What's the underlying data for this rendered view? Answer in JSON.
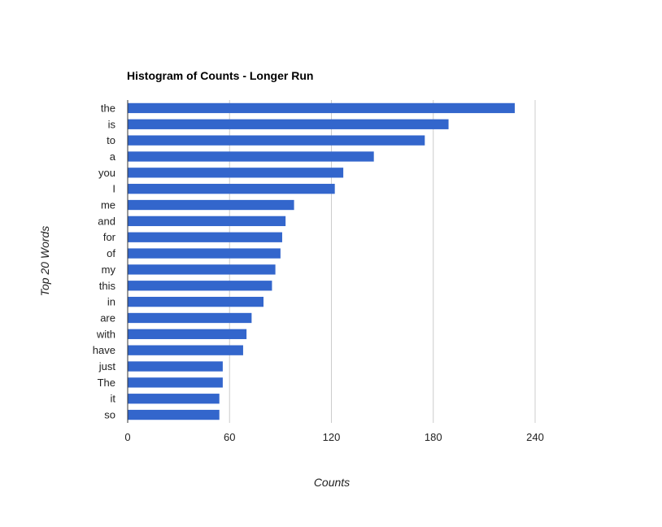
{
  "chart_data": {
    "type": "bar",
    "orientation": "horizontal",
    "title": "Histogram of Counts - Longer Run",
    "xlabel": "Counts",
    "ylabel": "Top 20 Words",
    "xlim": [
      0,
      240
    ],
    "xticks": [
      "0",
      "60",
      "120",
      "180",
      "240"
    ],
    "grid": true,
    "legend": "none",
    "bar_color": "#3366cc",
    "categories": [
      "the",
      "is",
      "to",
      "a",
      "you",
      "I",
      "me",
      "and",
      "for",
      "of",
      "my",
      "this",
      "in",
      "are",
      "with",
      "have",
      "just",
      "The",
      "it",
      "so"
    ],
    "values": [
      228,
      189,
      175,
      145,
      127,
      122,
      98,
      93,
      91,
      90,
      87,
      85,
      80,
      73,
      70,
      68,
      56,
      56,
      54,
      54
    ]
  }
}
